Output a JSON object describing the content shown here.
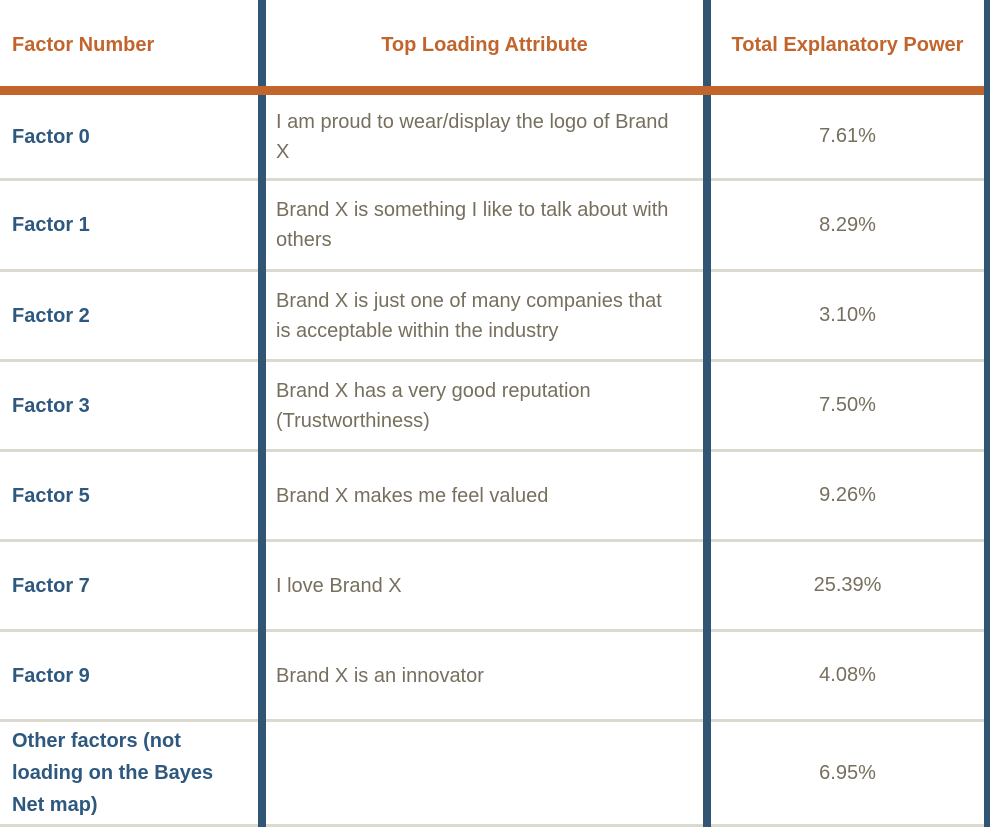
{
  "table": {
    "columns": [
      {
        "label": "Factor Number"
      },
      {
        "label": "Top Loading Attribute"
      },
      {
        "label": "Total Explanatory Power"
      }
    ],
    "rows": [
      {
        "factor": "Factor 0",
        "attribute": "I am proud to wear/display the logo of Brand X",
        "power": "7.61%"
      },
      {
        "factor": "Factor 1",
        "attribute": "Brand X is something I like to talk about with others",
        "power": "8.29%"
      },
      {
        "factor": "Factor 2",
        "attribute": "Brand X is just one of many companies that is acceptable within the industry",
        "power": "3.10%"
      },
      {
        "factor": "Factor 3",
        "attribute": "Brand X has a very good reputation (Trustworthiness)",
        "power": "7.50%"
      },
      {
        "factor": "Factor 5",
        "attribute": "Brand X makes me feel valued",
        "power": "9.26%"
      },
      {
        "factor": "Factor 7",
        "attribute": "I love Brand X",
        "power": "25.39%"
      },
      {
        "factor": "Factor 9",
        "attribute": "Brand X is an innovator",
        "power": "4.08%"
      },
      {
        "factor": "Other factors (not loading on the Bayes Net map)",
        "attribute": "",
        "power": "6.95%"
      }
    ],
    "colors": {
      "header_text": "#C2652D",
      "accent_rule": "#C2652D",
      "column_divider": "#305673",
      "factor_text": "#2E587E",
      "body_text": "#776F5E",
      "row_divider": "#DCD9CE",
      "background": "#FFFFFF"
    }
  }
}
